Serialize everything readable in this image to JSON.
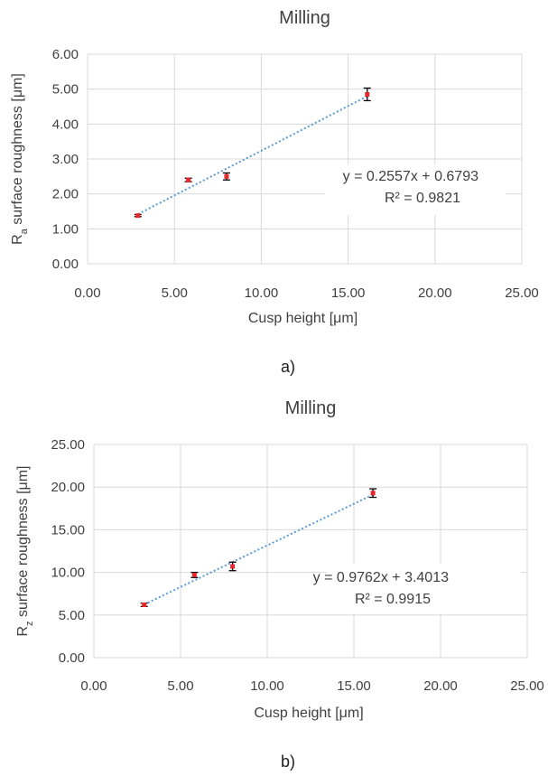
{
  "chart_data": [
    {
      "type": "scatter",
      "title": "Milling",
      "xlabel": "Cusp height [μm]",
      "ylabel_main": "R",
      "ylabel_sub": "a",
      "ylabel_rest": " surface roughness [μm]",
      "xlim": [
        0,
        25
      ],
      "ylim": [
        0,
        6
      ],
      "x_ticks": [
        "0.00",
        "5.00",
        "10.00",
        "15.00",
        "20.00",
        "25.00"
      ],
      "y_ticks": [
        "0.00",
        "1.00",
        "2.00",
        "3.00",
        "4.00",
        "5.00",
        "6.00"
      ],
      "grid": true,
      "points": [
        {
          "x": 2.9,
          "y": 1.38,
          "err": 0.03
        },
        {
          "x": 5.8,
          "y": 2.4,
          "err": 0.05
        },
        {
          "x": 8.0,
          "y": 2.5,
          "err": 0.1
        },
        {
          "x": 16.1,
          "y": 4.85,
          "err": 0.18
        }
      ],
      "trendline": {
        "slope": 0.2557,
        "intercept": 0.6793,
        "x_start": 2.9,
        "x_end": 16.1
      },
      "equation": "y = 0.2557x + 0.6793",
      "r2": "R² = 0.9821",
      "marker_color": "#e8262b",
      "trend_color": "#5b9bd5",
      "caption": "a)"
    },
    {
      "type": "scatter",
      "title": "Milling",
      "xlabel": "Cusp height [μm]",
      "ylabel_main": "R",
      "ylabel_sub": "z",
      "ylabel_rest": " surface roughness [μm]",
      "xlim": [
        0,
        25
      ],
      "ylim": [
        0,
        25
      ],
      "x_ticks": [
        "0.00",
        "5.00",
        "10.00",
        "15.00",
        "20.00",
        "25.00"
      ],
      "y_ticks": [
        "0.00",
        "5.00",
        "10.00",
        "15.00",
        "20.00",
        "25.00"
      ],
      "grid": true,
      "points": [
        {
          "x": 2.9,
          "y": 6.2,
          "err": 0.2
        },
        {
          "x": 5.8,
          "y": 9.7,
          "err": 0.3
        },
        {
          "x": 8.0,
          "y": 10.7,
          "err": 0.5
        },
        {
          "x": 16.1,
          "y": 19.3,
          "err": 0.5
        }
      ],
      "trendline": {
        "slope": 0.9762,
        "intercept": 3.4013,
        "x_start": 2.9,
        "x_end": 16.1
      },
      "equation": "y = 0.9762x + 3.4013",
      "r2": "R² = 0.9915",
      "marker_color": "#e8262b",
      "trend_color": "#5b9bd5",
      "caption": "b)"
    }
  ]
}
